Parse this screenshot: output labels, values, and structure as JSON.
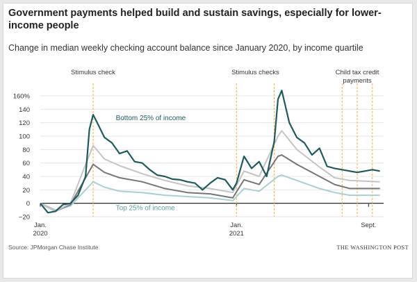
{
  "header": {
    "title": "Government payments helped build and sustain savings, especially for lower-income people",
    "subtitle": "Change in median weekly checking account balance since January 2020, by income quartile"
  },
  "footer": {
    "source": "Source: JPMorgan Chase Institute",
    "brand": "THE WASHINGTON POST"
  },
  "colors": {
    "bottom": "#1c5a5e",
    "q2": "#757575",
    "q3": "#c4c4c4",
    "top": "#a8cfd1",
    "event": "#f2b134",
    "grid": "#e6e6e6",
    "zero": "#111111"
  },
  "chart_data": {
    "type": "line",
    "ylim": [
      -20,
      160
    ],
    "ytick_values": [
      -20,
      0,
      20,
      40,
      60,
      80,
      100,
      120,
      140,
      160
    ],
    "ytick_labels": [
      "−20",
      "0",
      "20",
      "40",
      "60",
      "80",
      "100",
      "120",
      "140",
      "160%"
    ],
    "x_range": [
      "2020-01-06",
      "2021-10-04"
    ],
    "x_ticks": [
      {
        "date": "2020-01-06",
        "line1": "Jan.",
        "line2": "2020"
      },
      {
        "date": "2021-01-04",
        "line1": "Jan.",
        "line2": "2021"
      },
      {
        "date": "2021-09-06",
        "line1": "Sept.",
        "line2": ""
      }
    ],
    "events": [
      {
        "label": "Stimulus check",
        "dates": [
          "2020-04-13"
        ]
      },
      {
        "label": "Stimulus checks",
        "dates": [
          "2021-01-04",
          "2021-03-15"
        ]
      },
      {
        "label": "Child tax credit payments",
        "dates": [
          "2021-07-19",
          "2021-08-16",
          "2021-09-13"
        ]
      }
    ],
    "annotations": [
      {
        "text": "Bottom 25% of income",
        "series": "bottom",
        "date": "2020-05-25",
        "value": 124
      },
      {
        "text": "Top 25% of income",
        "series": "top",
        "date": "2020-05-25",
        "value": -10
      }
    ],
    "series": [
      {
        "key": "bottom",
        "dates": [
          "2020-01-06",
          "2020-01-20",
          "2020-02-03",
          "2020-02-17",
          "2020-03-02",
          "2020-03-16",
          "2020-03-30",
          "2020-04-06",
          "2020-04-13",
          "2020-04-20",
          "2020-05-04",
          "2020-05-18",
          "2020-06-01",
          "2020-06-15",
          "2020-06-29",
          "2020-07-13",
          "2020-07-27",
          "2020-08-10",
          "2020-08-24",
          "2020-09-07",
          "2020-09-21",
          "2020-10-05",
          "2020-10-19",
          "2020-11-02",
          "2020-11-16",
          "2020-11-30",
          "2020-12-14",
          "2020-12-28",
          "2021-01-04",
          "2021-01-18",
          "2021-02-01",
          "2021-02-15",
          "2021-03-01",
          "2021-03-15",
          "2021-03-22",
          "2021-03-29",
          "2021-04-12",
          "2021-04-26",
          "2021-05-10",
          "2021-05-24",
          "2021-06-07",
          "2021-06-21",
          "2021-07-05",
          "2021-07-19",
          "2021-08-02",
          "2021-08-16",
          "2021-08-30",
          "2021-09-13",
          "2021-09-27"
        ],
        "values": [
          0,
          -14,
          -12,
          -2,
          0,
          12,
          40,
          110,
          132,
          121,
          98,
          90,
          74,
          78,
          62,
          60,
          50,
          42,
          40,
          36,
          35,
          32,
          30,
          20,
          30,
          38,
          35,
          20,
          30,
          70,
          52,
          62,
          40,
          92,
          155,
          168,
          120,
          98,
          90,
          72,
          82,
          55,
          52,
          50,
          48,
          46,
          48,
          50,
          48
        ]
      },
      {
        "key": "q3",
        "dates": [
          "2020-01-06",
          "2020-02-03",
          "2020-03-02",
          "2020-04-06",
          "2020-04-13",
          "2020-05-04",
          "2020-06-01",
          "2020-07-13",
          "2020-08-24",
          "2020-10-05",
          "2020-11-16",
          "2020-12-28",
          "2021-01-18",
          "2021-02-15",
          "2021-03-22",
          "2021-03-29",
          "2021-04-26",
          "2021-06-07",
          "2021-07-05",
          "2021-08-02",
          "2021-09-27"
        ],
        "values": [
          0,
          -12,
          0,
          72,
          86,
          66,
          56,
          44,
          34,
          26,
          22,
          16,
          48,
          40,
          100,
          108,
          80,
          54,
          38,
          34,
          32
        ]
      },
      {
        "key": "q2",
        "dates": [
          "2020-01-06",
          "2020-02-03",
          "2020-03-02",
          "2020-04-06",
          "2020-04-13",
          "2020-05-04",
          "2020-06-01",
          "2020-07-13",
          "2020-08-24",
          "2020-10-05",
          "2020-11-16",
          "2020-12-28",
          "2021-01-18",
          "2021-02-15",
          "2021-03-22",
          "2021-03-29",
          "2021-04-26",
          "2021-06-07",
          "2021-07-05",
          "2021-08-02",
          "2021-09-27"
        ],
        "values": [
          0,
          -12,
          -2,
          48,
          58,
          46,
          38,
          32,
          22,
          16,
          14,
          8,
          35,
          28,
          70,
          72,
          58,
          40,
          28,
          22,
          22
        ]
      },
      {
        "key": "top",
        "dates": [
          "2020-01-06",
          "2020-02-03",
          "2020-03-02",
          "2020-04-06",
          "2020-04-13",
          "2020-05-04",
          "2020-06-01",
          "2020-07-13",
          "2020-08-24",
          "2020-10-05",
          "2020-11-16",
          "2020-12-28",
          "2021-01-18",
          "2021-02-15",
          "2021-03-22",
          "2021-03-29",
          "2021-04-26",
          "2021-06-07",
          "2021-07-05",
          "2021-08-02",
          "2021-09-27"
        ],
        "values": [
          0,
          -10,
          -4,
          26,
          32,
          24,
          18,
          16,
          12,
          10,
          8,
          4,
          22,
          18,
          40,
          42,
          34,
          22,
          16,
          12,
          12
        ]
      }
    ]
  }
}
